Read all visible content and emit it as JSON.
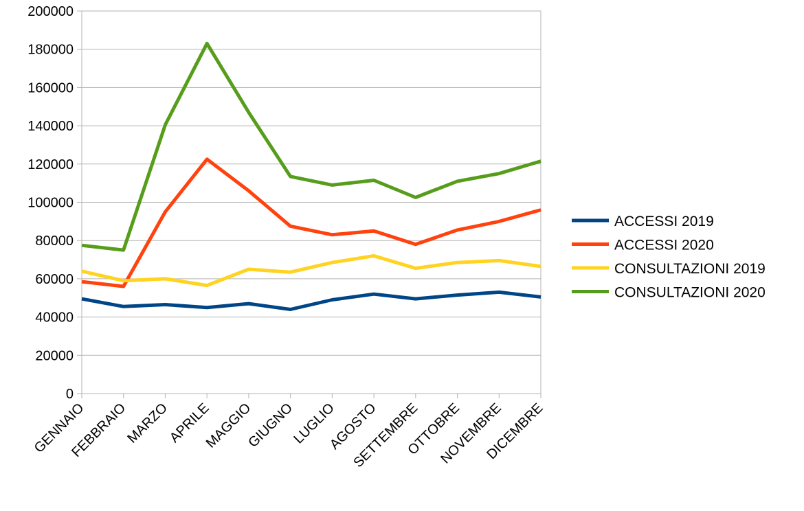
{
  "chart_data": {
    "type": "line",
    "title": "",
    "xlabel": "",
    "ylabel": "",
    "categories": [
      "GENNAIO",
      "FEBBRAIO",
      "MARZO",
      "APRILE",
      "MAGGIO",
      "GIUGNO",
      "LUGLIO",
      "AGOSTO",
      "SETTEMBRE",
      "OTTOBRE",
      "NOVEMBRE",
      "DICEMBRE"
    ],
    "ylim": [
      0,
      200000
    ],
    "yticks": [
      "0",
      "20000",
      "40000",
      "60000",
      "80000",
      "100000",
      "120000",
      "140000",
      "160000",
      "180000",
      "200000"
    ],
    "grid": true,
    "legend_position": "right",
    "series": [
      {
        "name": "ACCESSI 2019",
        "color": "#004586",
        "values": [
          49500,
          45500,
          46500,
          45000,
          47000,
          44000,
          49000,
          52000,
          49500,
          51500,
          53000,
          50500
        ]
      },
      {
        "name": "ACCESSI 2020",
        "color": "#ff420e",
        "values": [
          58500,
          56000,
          95000,
          122500,
          106000,
          87500,
          83000,
          85000,
          78000,
          85500,
          90000,
          96000
        ]
      },
      {
        "name": "CONSULTAZIONI 2019",
        "color": "#ffd320",
        "values": [
          64000,
          59000,
          60000,
          56500,
          65000,
          63500,
          68500,
          72000,
          65500,
          68500,
          69500,
          66500
        ]
      },
      {
        "name": "CONSULTAZIONI 2020",
        "color": "#579d1c",
        "values": [
          77500,
          75000,
          140500,
          183000,
          147000,
          113500,
          109000,
          111500,
          102500,
          111000,
          115000,
          121500
        ]
      }
    ]
  }
}
